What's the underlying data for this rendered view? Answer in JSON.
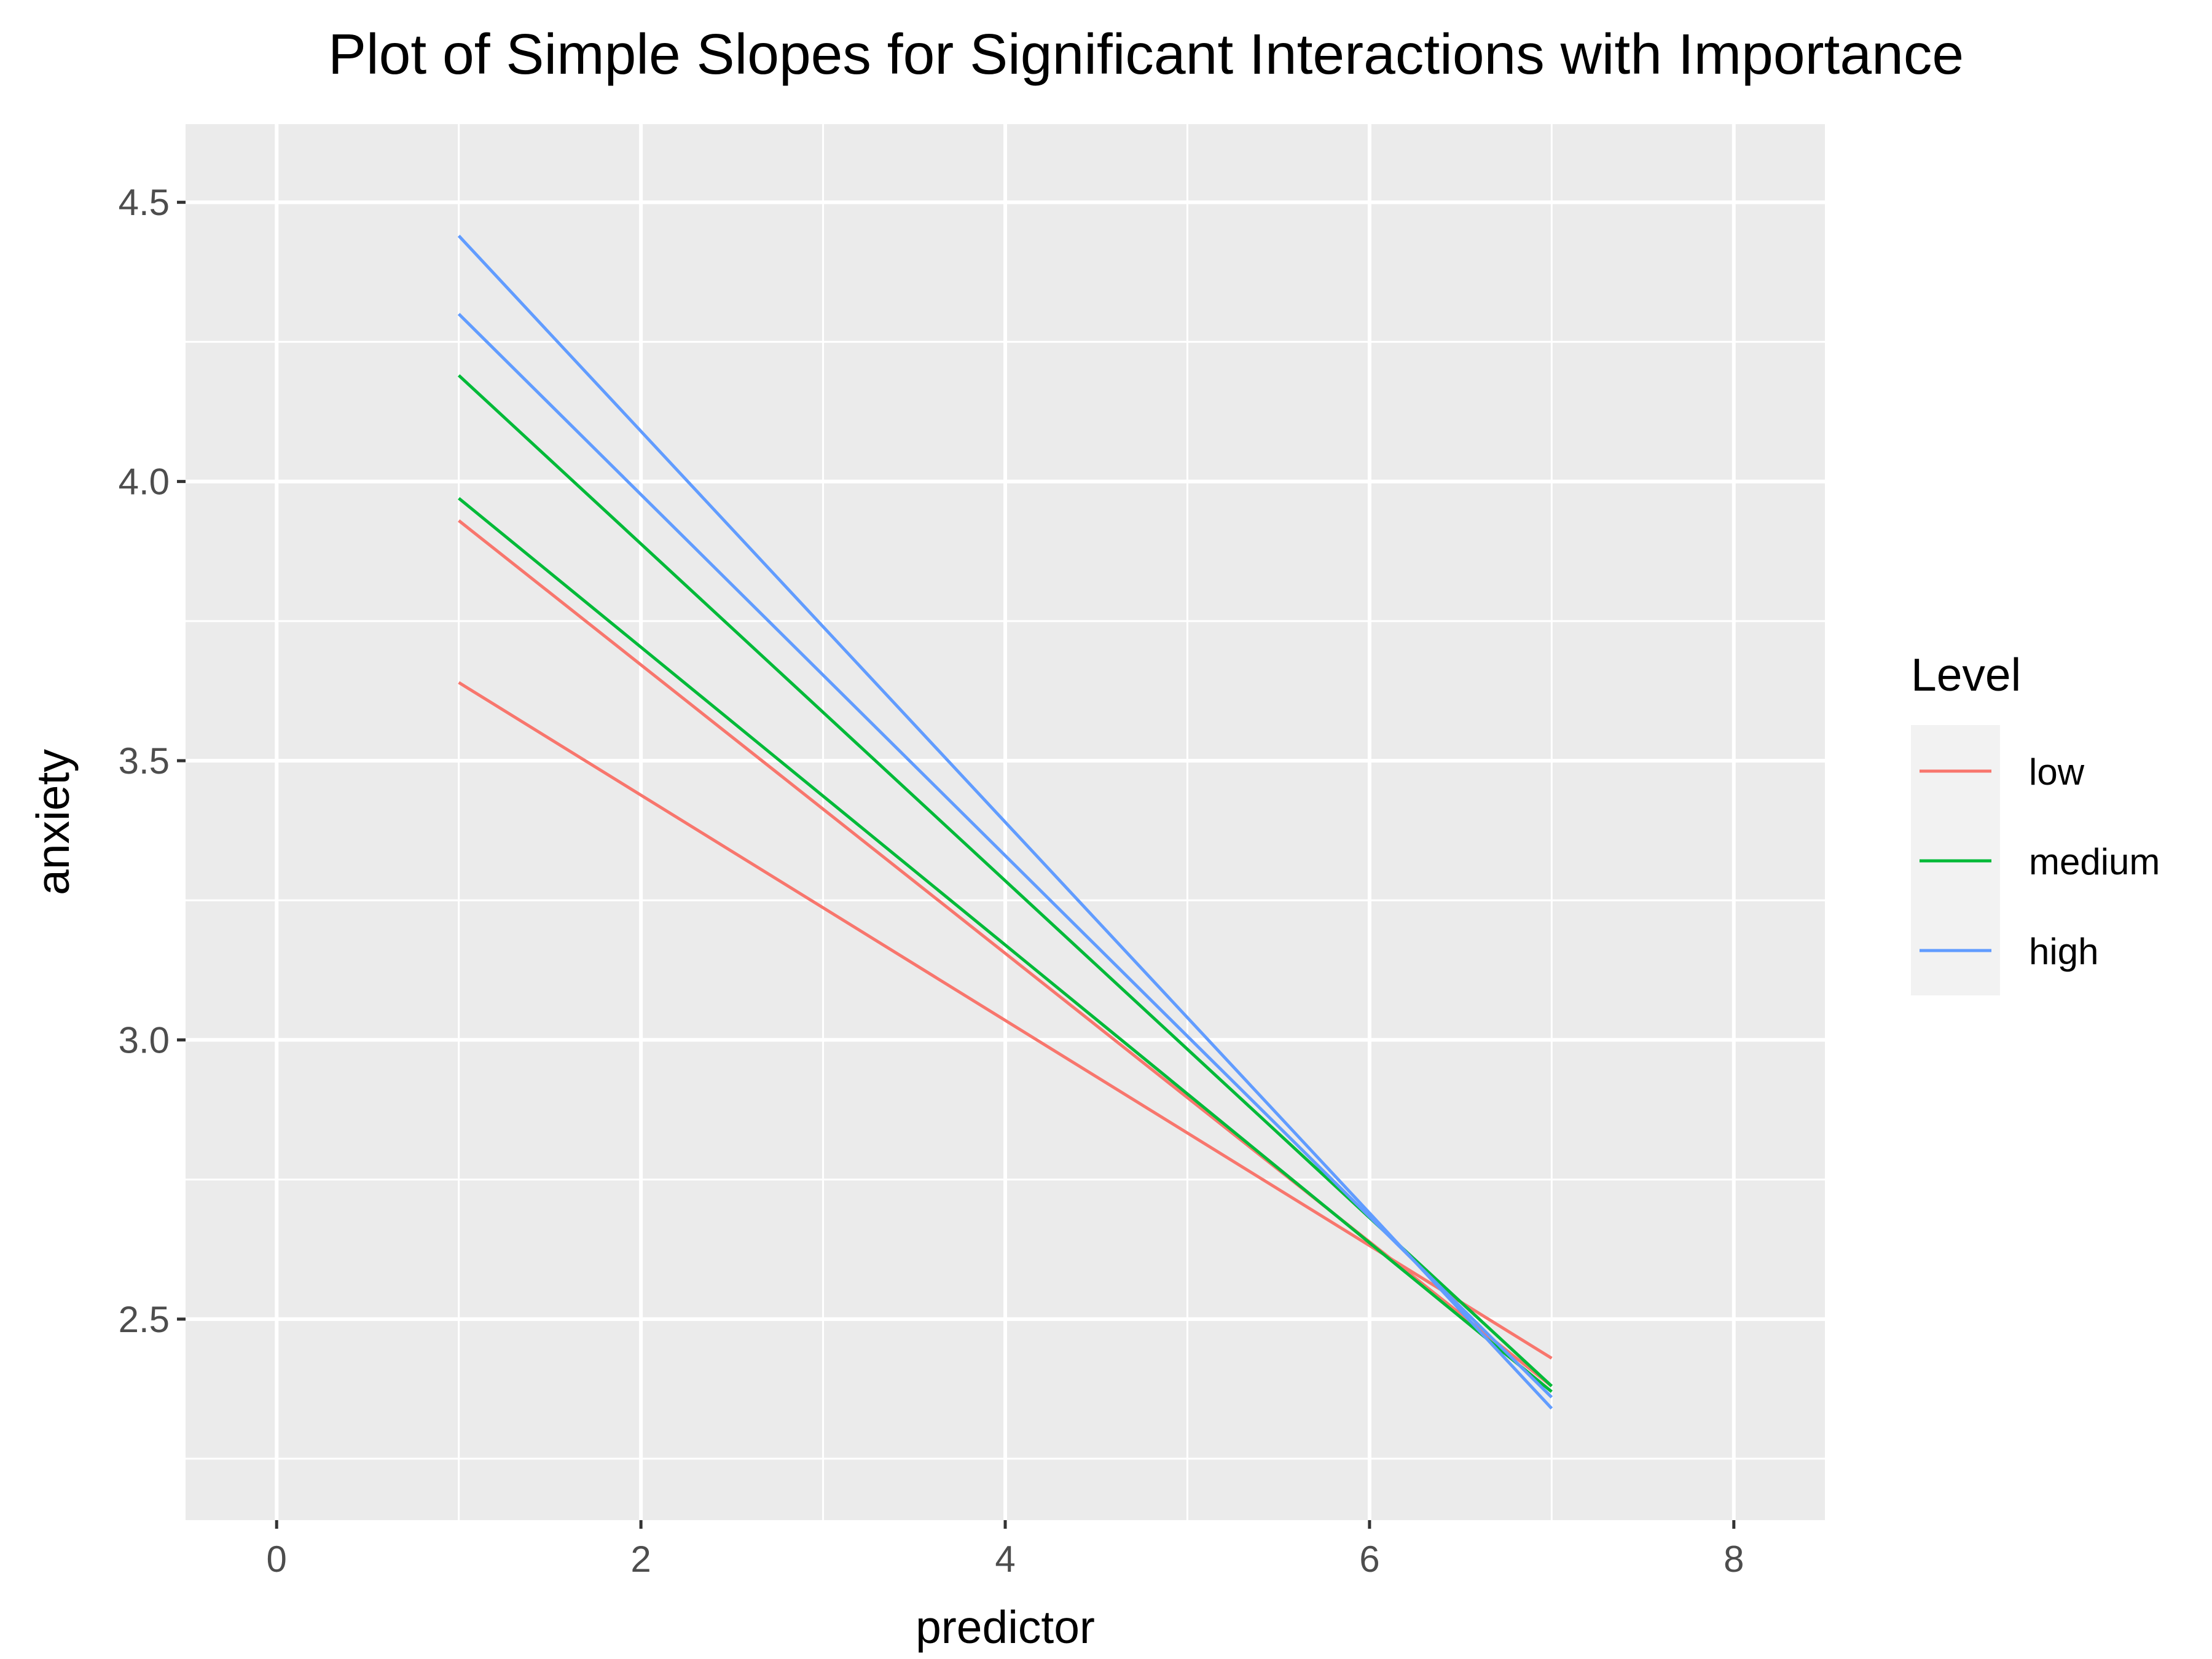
{
  "chart_data": {
    "type": "line",
    "title": "Plot of Simple Slopes for Significant Interactions with Importance",
    "xlabel": "predictor",
    "ylabel": "anxiety",
    "xlim": [
      -0.5,
      8.5
    ],
    "ylim": [
      2.14,
      4.64
    ],
    "x_ticks": [
      0,
      2,
      4,
      6,
      8
    ],
    "x_tick_labels": [
      "0",
      "2",
      "4",
      "6",
      "8"
    ],
    "y_ticks": [
      2.5,
      3.0,
      3.5,
      4.0,
      4.5
    ],
    "y_tick_labels": [
      "2.5",
      "3.0",
      "3.5",
      "4.0",
      "4.5"
    ],
    "x_minor_ticks": [
      1,
      3,
      5,
      7
    ],
    "y_minor_ticks": [
      2.25,
      2.75,
      3.25,
      3.75,
      4.25
    ],
    "grid": true,
    "background": "#ebebeb",
    "legend": {
      "title": "Level",
      "position": "right",
      "entries": [
        {
          "label": "low",
          "color": "#f8766d"
        },
        {
          "label": "medium",
          "color": "#00ba38"
        },
        {
          "label": "high",
          "color": "#619cff"
        }
      ]
    },
    "series": [
      {
        "level": "low",
        "color": "#f8766d",
        "x": [
          1,
          7
        ],
        "y": [
          3.64,
          2.43
        ]
      },
      {
        "level": "low",
        "color": "#f8766d",
        "x": [
          1,
          7
        ],
        "y": [
          3.93,
          2.38
        ]
      },
      {
        "level": "medium",
        "color": "#00ba38",
        "x": [
          1,
          7
        ],
        "y": [
          3.97,
          2.37
        ]
      },
      {
        "level": "medium",
        "color": "#00ba38",
        "x": [
          1,
          7
        ],
        "y": [
          4.19,
          2.38
        ]
      },
      {
        "level": "high",
        "color": "#619cff",
        "x": [
          1,
          7
        ],
        "y": [
          4.3,
          2.36
        ]
      },
      {
        "level": "high",
        "color": "#619cff",
        "x": [
          1,
          7
        ],
        "y": [
          4.44,
          2.34
        ]
      }
    ]
  }
}
